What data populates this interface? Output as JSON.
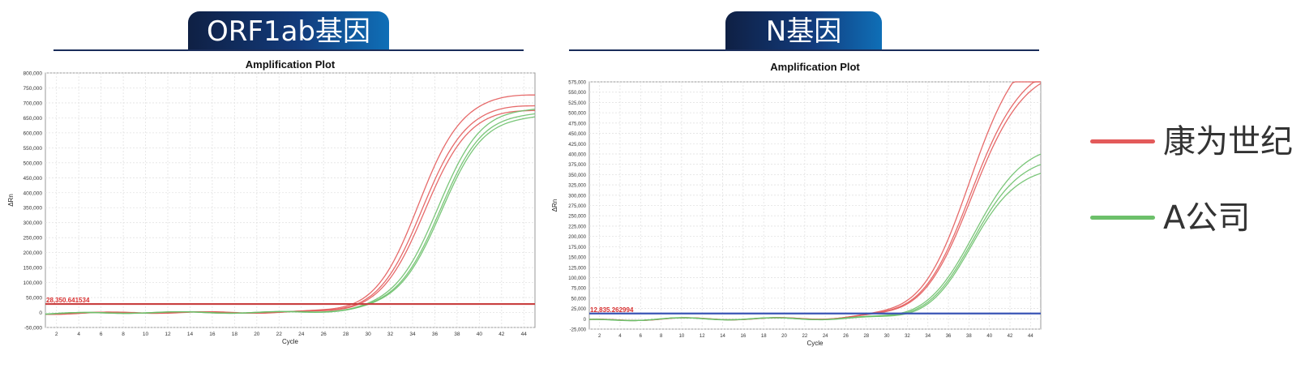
{
  "colors": {
    "kangwei": "#e35a5a",
    "company_a": "#6cc06a",
    "threshold_red": "#c94040",
    "threshold_blue": "#3a55b5"
  },
  "legend": [
    {
      "label": "康为世纪",
      "color": "#e35a5a"
    },
    {
      "label": "A公司",
      "color": "#6cc06a"
    }
  ],
  "chart_data": [
    {
      "type": "line",
      "panel_label": "ORF1ab基因",
      "title": "Amplification Plot",
      "xlabel": "Cycle",
      "ylabel": "ΔRn",
      "xlim": [
        1,
        45
      ],
      "ylim": [
        -50000,
        800000
      ],
      "xticks": [
        2,
        4,
        6,
        8,
        10,
        12,
        14,
        16,
        18,
        20,
        22,
        24,
        26,
        28,
        30,
        32,
        34,
        36,
        38,
        40,
        42,
        44
      ],
      "yticks": [
        -50000,
        0,
        50000,
        100000,
        150000,
        200000,
        250000,
        300000,
        350000,
        400000,
        450000,
        500000,
        550000,
        600000,
        650000,
        700000,
        750000,
        800000
      ],
      "ytick_labels": [
        "-50,000",
        "0",
        "50,000",
        "100,000",
        "150,000",
        "200,000",
        "250,000",
        "300,000",
        "350,000",
        "400,000",
        "450,000",
        "500,000",
        "550,000",
        "600,000",
        "650,000",
        "700,000",
        "750,000",
        "800,000"
      ],
      "grid": true,
      "threshold": {
        "value": 28350.641534,
        "label": "28,350.641534",
        "color": "#c94040"
      },
      "series": [
        {
          "group": "kangwei",
          "color": "#e35a5a",
          "plateau": 730000,
          "midpoint": 34.6,
          "slope": 0.52
        },
        {
          "group": "kangwei",
          "color": "#e35a5a",
          "plateau": 695000,
          "midpoint": 34.9,
          "slope": 0.52
        },
        {
          "group": "kangwei",
          "color": "#e35a5a",
          "plateau": 680000,
          "midpoint": 35.1,
          "slope": 0.52
        },
        {
          "group": "company_a",
          "color": "#6cc06a",
          "plateau": 690000,
          "midpoint": 36.2,
          "slope": 0.5
        },
        {
          "group": "company_a",
          "color": "#6cc06a",
          "plateau": 675000,
          "midpoint": 36.4,
          "slope": 0.5
        },
        {
          "group": "company_a",
          "color": "#6cc06a",
          "plateau": 665000,
          "midpoint": 36.5,
          "slope": 0.5
        }
      ]
    },
    {
      "type": "line",
      "panel_label": "N基因",
      "title": "Amplification Plot",
      "xlabel": "Cycle",
      "ylabel": "ΔRn",
      "xlim": [
        1,
        45
      ],
      "ylim": [
        -25000,
        575000
      ],
      "xticks": [
        2,
        4,
        6,
        8,
        10,
        12,
        14,
        16,
        18,
        20,
        22,
        24,
        26,
        28,
        30,
        32,
        34,
        36,
        38,
        40,
        42,
        44
      ],
      "yticks": [
        -25000,
        0,
        25000,
        50000,
        75000,
        100000,
        125000,
        150000,
        175000,
        200000,
        225000,
        250000,
        275000,
        300000,
        325000,
        350000,
        375000,
        400000,
        425000,
        450000,
        475000,
        500000,
        525000,
        550000,
        575000
      ],
      "ytick_labels": [
        "-25,000",
        "0",
        "25,000",
        "50,000",
        "75,000",
        "100,000",
        "125,000",
        "150,000",
        "175,000",
        "200,000",
        "225,000",
        "250,000",
        "275,000",
        "300,000",
        "325,000",
        "350,000",
        "375,000",
        "400,000",
        "425,000",
        "450,000",
        "475,000",
        "500,000",
        "525,000",
        "550,000",
        "575,000"
      ],
      "grid": true,
      "threshold": {
        "value": 12835.262994,
        "label": "12,835.262994",
        "color": "#3a55b5"
      },
      "series": [
        {
          "group": "kangwei",
          "color": "#e35a5a",
          "plateau": 680000,
          "midpoint": 38.2,
          "slope": 0.42
        },
        {
          "group": "kangwei",
          "color": "#e35a5a",
          "plateau": 620000,
          "midpoint": 38.3,
          "slope": 0.42
        },
        {
          "group": "kangwei",
          "color": "#e35a5a",
          "plateau": 605000,
          "midpoint": 38.4,
          "slope": 0.42
        },
        {
          "group": "company_a",
          "color": "#6cc06a",
          "plateau": 420000,
          "midpoint": 38.6,
          "slope": 0.45
        },
        {
          "group": "company_a",
          "color": "#6cc06a",
          "plateau": 390000,
          "midpoint": 38.5,
          "slope": 0.47
        },
        {
          "group": "company_a",
          "color": "#6cc06a",
          "plateau": 365000,
          "midpoint": 38.4,
          "slope": 0.49
        }
      ]
    }
  ]
}
